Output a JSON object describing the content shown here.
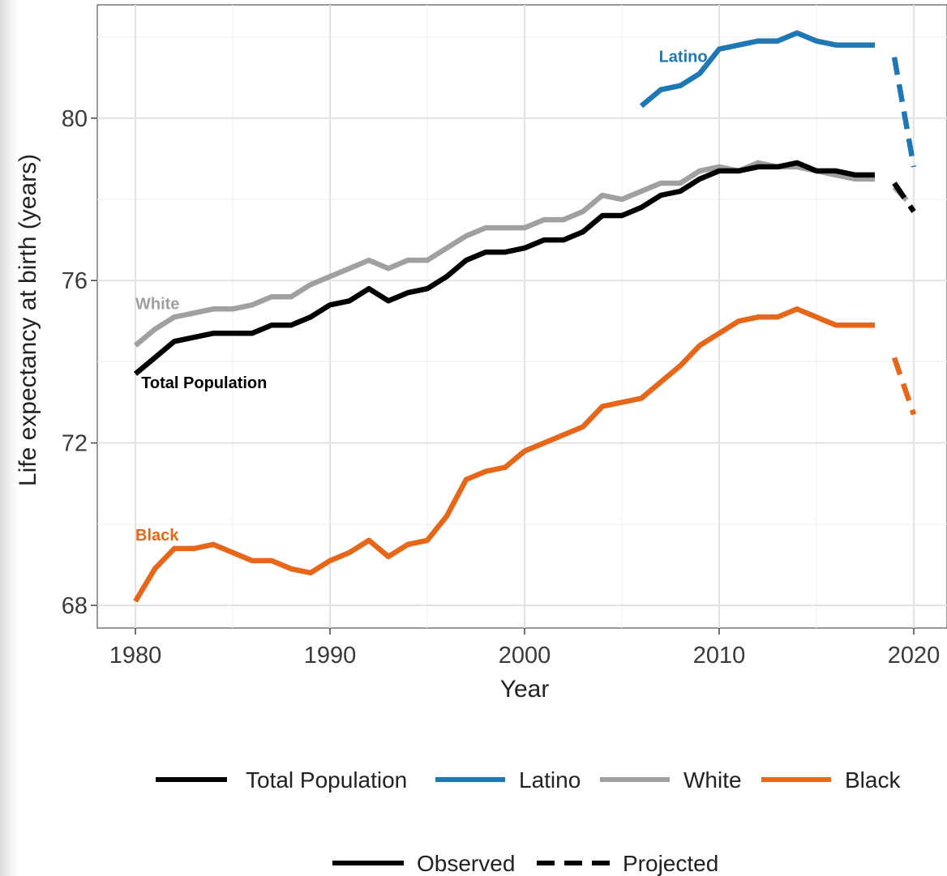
{
  "chart_data": {
    "type": "line",
    "xlabel": "Year",
    "ylabel": "Life expectancy at birth (years)",
    "xlim": [
      1978,
      2021
    ],
    "ylim": [
      67.5,
      82.8
    ],
    "x_ticks": [
      1980,
      1990,
      2000,
      2010,
      2020
    ],
    "y_ticks": [
      68,
      72,
      76,
      80
    ],
    "grid": true,
    "legend_position": "bottom",
    "series": [
      {
        "name": "Total Population",
        "color": "#000000",
        "direct_label": "Total Population",
        "label_at": [
          1980.3,
          73.35
        ],
        "observed": {
          "x": [
            1980,
            1981,
            1982,
            1983,
            1984,
            1985,
            1986,
            1987,
            1988,
            1989,
            1990,
            1991,
            1992,
            1993,
            1994,
            1995,
            1996,
            1997,
            1998,
            1999,
            2000,
            2001,
            2002,
            2003,
            2004,
            2005,
            2006,
            2007,
            2008,
            2009,
            2010,
            2011,
            2012,
            2013,
            2014,
            2015,
            2016,
            2017,
            2018
          ],
          "y": [
            73.7,
            74.1,
            74.5,
            74.6,
            74.7,
            74.7,
            74.7,
            74.9,
            74.9,
            75.1,
            75.4,
            75.5,
            75.8,
            75.5,
            75.7,
            75.8,
            76.1,
            76.5,
            76.7,
            76.7,
            76.8,
            77.0,
            77.0,
            77.2,
            77.6,
            77.6,
            77.8,
            78.1,
            78.2,
            78.5,
            78.7,
            78.7,
            78.8,
            78.8,
            78.9,
            78.7,
            78.7,
            78.6,
            78.6
          ]
        },
        "projected": {
          "x": [
            2019,
            2020
          ],
          "y": [
            78.4,
            77.7
          ]
        }
      },
      {
        "name": "Latino",
        "color": "#1f78b4",
        "direct_label": "Latino",
        "label_at": [
          2006.9,
          81.38
        ],
        "observed": {
          "x": [
            2006,
            2007,
            2008,
            2009,
            2010,
            2011,
            2012,
            2013,
            2014,
            2015,
            2016,
            2017,
            2018
          ],
          "y": [
            80.3,
            80.7,
            80.8,
            81.1,
            81.7,
            81.8,
            81.9,
            81.9,
            82.1,
            81.9,
            81.8,
            81.8,
            81.8
          ]
        },
        "projected": {
          "x": [
            2019,
            2020
          ],
          "y": [
            81.5,
            78.8
          ]
        }
      },
      {
        "name": "White",
        "color": "#a0a0a0",
        "direct_label": "White",
        "label_at": [
          1980.0,
          75.3
        ],
        "observed": {
          "x": [
            1980,
            1981,
            1982,
            1983,
            1984,
            1985,
            1986,
            1987,
            1988,
            1989,
            1990,
            1991,
            1992,
            1993,
            1994,
            1995,
            1996,
            1997,
            1998,
            1999,
            2000,
            2001,
            2002,
            2003,
            2004,
            2005,
            2006,
            2007,
            2008,
            2009,
            2010,
            2011,
            2012,
            2013,
            2014,
            2015,
            2016,
            2017,
            2018
          ],
          "y": [
            74.4,
            74.8,
            75.1,
            75.2,
            75.3,
            75.3,
            75.4,
            75.6,
            75.6,
            75.9,
            76.1,
            76.3,
            76.5,
            76.3,
            76.5,
            76.5,
            76.8,
            77.1,
            77.3,
            77.3,
            77.3,
            77.5,
            77.5,
            77.7,
            78.1,
            78.0,
            78.2,
            78.4,
            78.4,
            78.7,
            78.8,
            78.7,
            78.9,
            78.8,
            78.8,
            78.7,
            78.6,
            78.5,
            78.5
          ]
        },
        "projected": {
          "x": [
            2019,
            2020
          ],
          "y": [
            78.3,
            77.8
          ]
        }
      },
      {
        "name": "Black",
        "color": "#e6661a",
        "direct_label": "Black",
        "label_at": [
          1980.0,
          69.6
        ],
        "observed": {
          "x": [
            1980,
            1981,
            1982,
            1983,
            1984,
            1985,
            1986,
            1987,
            1988,
            1989,
            1990,
            1991,
            1992,
            1993,
            1994,
            1995,
            1996,
            1997,
            1998,
            1999,
            2000,
            2001,
            2002,
            2003,
            2004,
            2005,
            2006,
            2007,
            2008,
            2009,
            2010,
            2011,
            2012,
            2013,
            2014,
            2015,
            2016,
            2017,
            2018
          ],
          "y": [
            68.1,
            68.9,
            69.4,
            69.4,
            69.5,
            69.3,
            69.1,
            69.1,
            68.9,
            68.8,
            69.1,
            69.3,
            69.6,
            69.2,
            69.5,
            69.6,
            70.2,
            71.1,
            71.3,
            71.4,
            71.8,
            72.0,
            72.2,
            72.4,
            72.9,
            73.0,
            73.1,
            73.5,
            73.9,
            74.4,
            74.7,
            75.0,
            75.1,
            75.1,
            75.3,
            75.1,
            74.9,
            74.9,
            74.9
          ]
        },
        "projected": {
          "x": [
            2019,
            2020
          ],
          "y": [
            74.1,
            72.7
          ]
        }
      }
    ],
    "linetype_legend": [
      {
        "label": "Observed",
        "style": "solid"
      },
      {
        "label": "Projected",
        "style": "dashed"
      }
    ]
  }
}
